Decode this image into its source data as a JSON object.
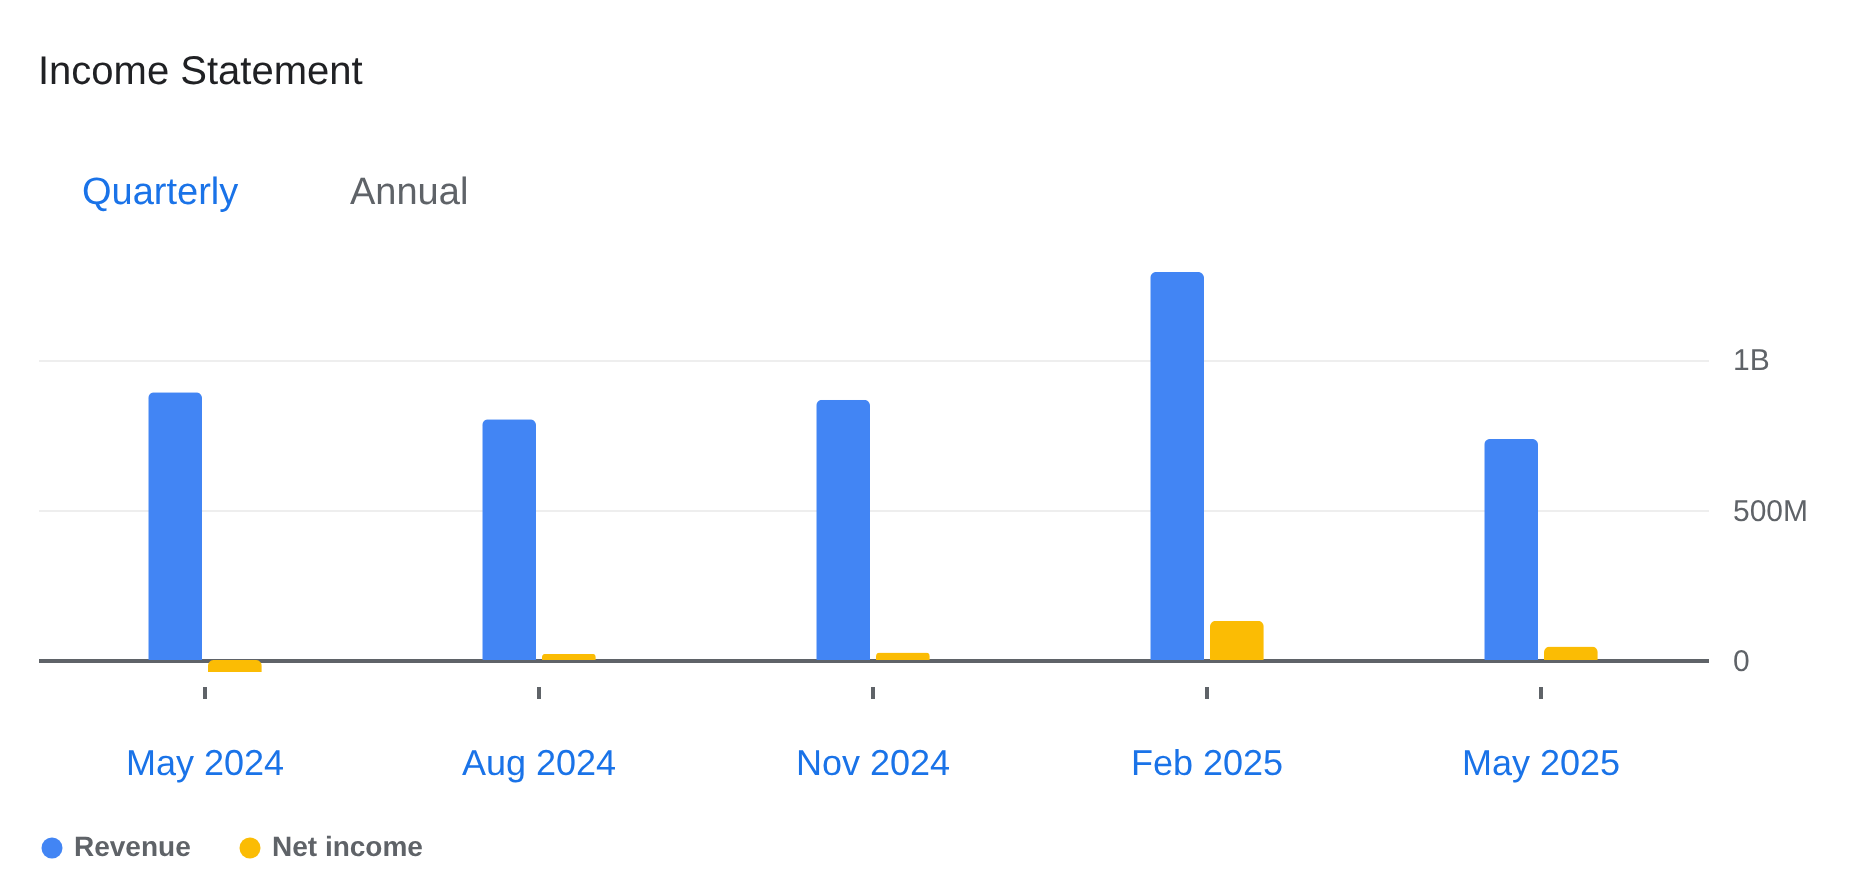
{
  "chart_data": {
    "type": "bar",
    "title": "Income Statement",
    "annotations": [
      "Quarterly",
      "Annual"
    ],
    "categories": [
      "May 2024",
      "Aug 2024",
      "Nov 2024",
      "Feb 2025",
      "May 2025"
    ],
    "series": [
      {
        "name": "Revenue",
        "color": "#4285f4",
        "values": [
          890000000,
          800000000,
          865000000,
          1290000000,
          735000000
        ]
      },
      {
        "name": "Net income",
        "color": "#fbbc04",
        "values": [
          -40000000,
          20000000,
          25000000,
          130000000,
          45000000
        ]
      }
    ],
    "ylim": [
      -40000000,
      1290000000
    ],
    "yticks": [
      0,
      {
        "value": 500000000,
        "label": "500M"
      },
      {
        "value": 1000000000,
        "label": "1B"
      }
    ],
    "grid": "y",
    "legend": "bottom left"
  }
}
